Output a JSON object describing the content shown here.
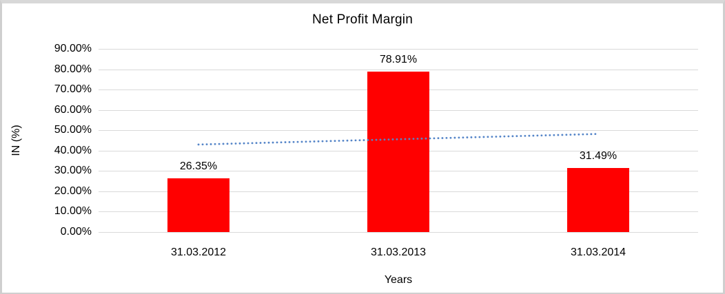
{
  "chart_data": {
    "type": "bar",
    "title": "Net Profit Margin",
    "xlabel": "Years",
    "ylabel": "IN (%)",
    "categories": [
      "31.03.2012",
      "31.03.2013",
      "31.03.2014"
    ],
    "values": [
      26.35,
      78.91,
      31.49
    ],
    "data_labels": [
      "26.35%",
      "78.91%",
      "31.49%"
    ],
    "yticks": [
      "90.00%",
      "80.00%",
      "70.00%",
      "60.00%",
      "50.00%",
      "40.00%",
      "30.00%",
      "20.00%",
      "10.00%",
      "0.00%"
    ],
    "ylim": [
      0,
      90
    ],
    "ytick_step": 10,
    "grid": true,
    "legend_position": "none",
    "bar_color": "#FF0000",
    "gridline_color": "#D9D9D9",
    "text_color": "#000000",
    "trendline": {
      "type": "linear",
      "style": "dotted",
      "color": "#5585C8",
      "start_value_pct": 43.0,
      "end_value_pct": 48.2
    }
  }
}
